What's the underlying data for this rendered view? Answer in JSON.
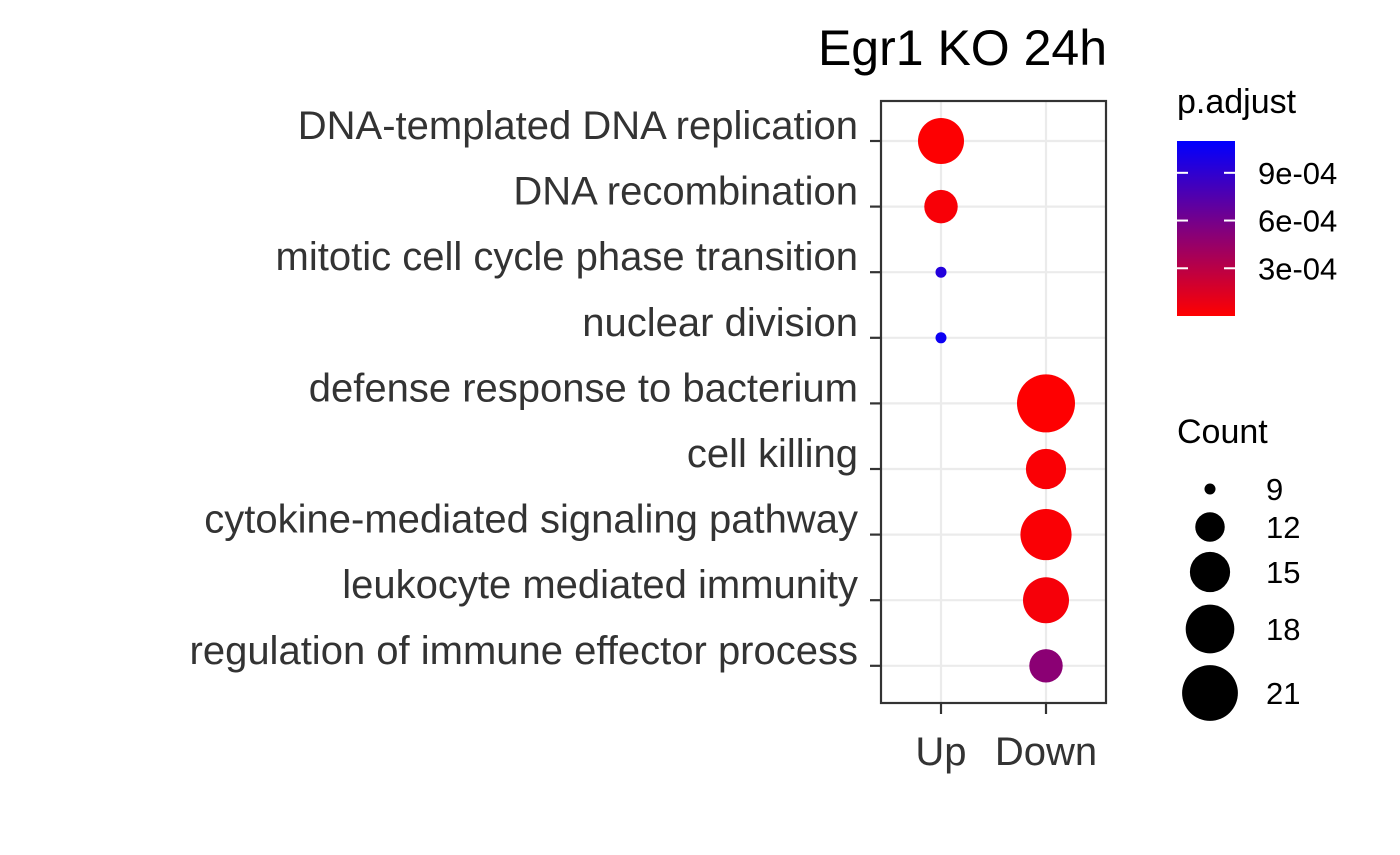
{
  "chart_data": {
    "type": "scatter",
    "title": "Egr1 KO 24h",
    "xlabel": "",
    "ylabel": "",
    "grid": true,
    "legend_position": "right",
    "x_categories": [
      "Up",
      "Down"
    ],
    "y_categories": [
      "DNA-templated DNA replication",
      "DNA recombination",
      "mitotic cell cycle phase transition",
      "nuclear division",
      "defense response to bacterium",
      "cell killing",
      "cytokine-mediated signaling pathway",
      "leukocyte mediated immunity",
      "regulation of immune effector process"
    ],
    "points": [
      {
        "term": "DNA-templated DNA replication",
        "cluster": "Up",
        "count": 17,
        "p_adjust": 1e-05
      },
      {
        "term": "DNA recombination",
        "cluster": "Up",
        "count": 13,
        "p_adjust": 3e-05
      },
      {
        "term": "mitotic cell cycle phase transition",
        "cluster": "Up",
        "count": 9,
        "p_adjust": 0.00095
      },
      {
        "term": "nuclear division",
        "cluster": "Up",
        "count": 9,
        "p_adjust": 0.00105
      },
      {
        "term": "defense response to bacterium",
        "cluster": "Down",
        "count": 22,
        "p_adjust": 5e-06
      },
      {
        "term": "cell killing",
        "cluster": "Down",
        "count": 15,
        "p_adjust": 2e-05
      },
      {
        "term": "cytokine-mediated signaling pathway",
        "cluster": "Down",
        "count": 19,
        "p_adjust": 2e-05
      },
      {
        "term": "leukocyte mediated immunity",
        "cluster": "Down",
        "count": 17,
        "p_adjust": 4e-05
      },
      {
        "term": "regulation of immune effector process",
        "cluster": "Down",
        "count": 13,
        "p_adjust": 0.0005
      }
    ],
    "color_legend": {
      "title": "p.adjust",
      "range": [
        0,
        0.0011
      ],
      "low_color": "#ff0000",
      "high_color": "#0000ff",
      "ticks": [
        {
          "value": 0.0009,
          "label": "9e-04"
        },
        {
          "value": 0.0006,
          "label": "6e-04"
        },
        {
          "value": 0.0003,
          "label": "3e-04"
        }
      ]
    },
    "size_legend": {
      "title": "Count",
      "range": [
        9,
        22
      ],
      "entries": [
        {
          "value": 9,
          "label": "9"
        },
        {
          "value": 12,
          "label": "12"
        },
        {
          "value": 15,
          "label": "15"
        },
        {
          "value": 18,
          "label": "18"
        },
        {
          "value": 21,
          "label": "21"
        }
      ]
    }
  }
}
